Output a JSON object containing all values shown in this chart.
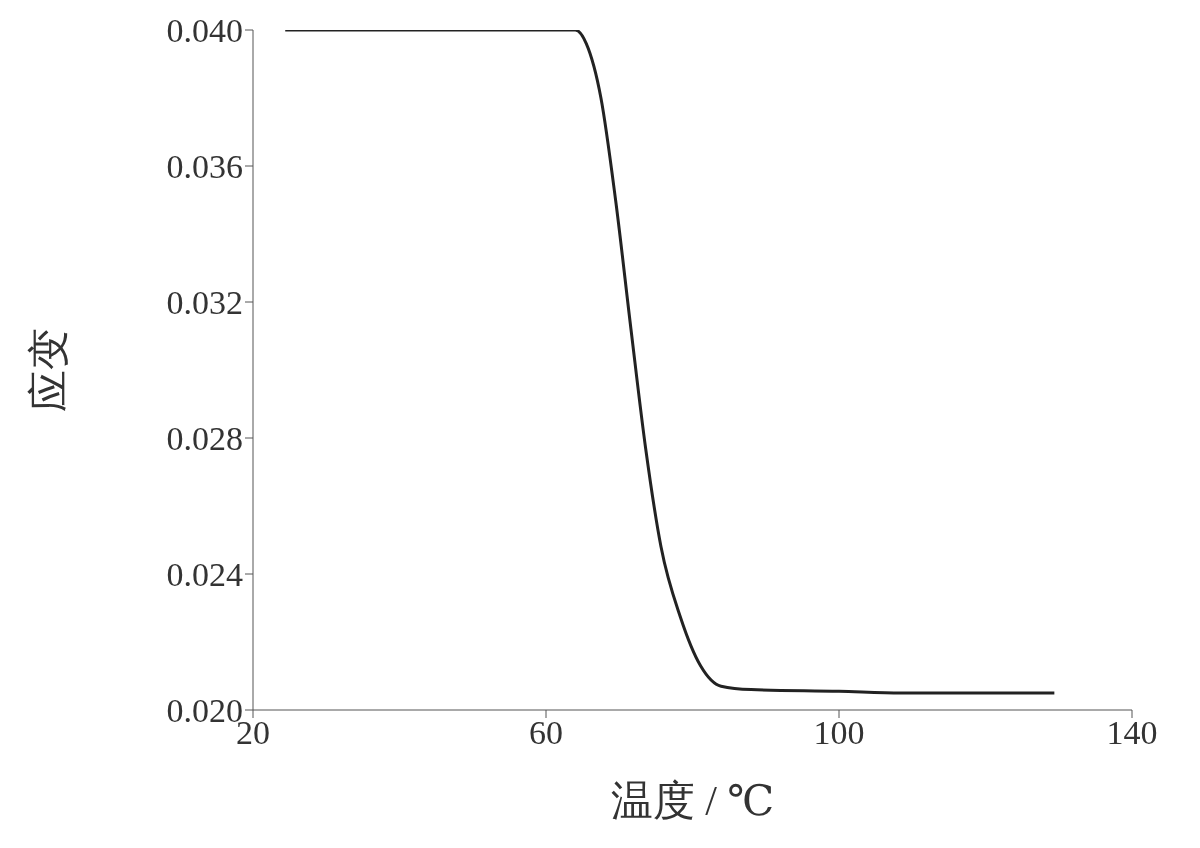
{
  "chart_data": {
    "type": "line",
    "xlabel": "温度 / ℃",
    "ylabel": "应变",
    "x": [
      24.4,
      40,
      55,
      64,
      65.5,
      67.5,
      69.5,
      71.6,
      73.6,
      75.7,
      78.4,
      81.1,
      83.9,
      88,
      100,
      108.5,
      120,
      129.4
    ],
    "series": [
      {
        "color": "#222222",
        "values": [
          0.04,
          0.04,
          0.04,
          0.04,
          0.0396,
          0.038,
          0.035,
          0.0312,
          0.0277,
          0.0248,
          0.0227,
          0.0213,
          0.0207,
          0.0206,
          0.02055,
          0.0205,
          0.0205,
          0.0205
        ]
      }
    ],
    "xlim": [
      20,
      140
    ],
    "xticks": [
      20,
      60,
      100,
      140
    ],
    "ylim": [
      0.02,
      0.04
    ],
    "yticks": [
      {
        "value": 0.02,
        "label": "0.020"
      },
      {
        "value": 0.024,
        "label": "0.024"
      },
      {
        "value": 0.028,
        "label": "0.028"
      },
      {
        "value": 0.032,
        "label": "0.032"
      },
      {
        "value": 0.036,
        "label": "0.036"
      },
      {
        "value": 0.04,
        "label": "0.040"
      }
    ],
    "grid": false,
    "legend": false,
    "marker": "none",
    "line_style": "solid"
  }
}
